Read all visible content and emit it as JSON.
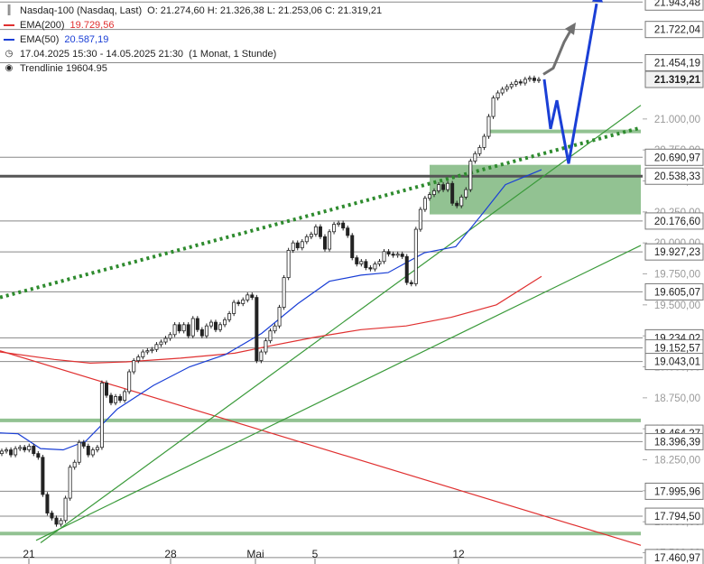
{
  "legend": {
    "instrument": "Nasdaq-100 (Nasdaq, Last)",
    "ohlc": "O: 21.274,60  H: 21.326,38  L: 21.253,06  C: 21.319,21",
    "ema200_label": "EMA(200)",
    "ema200_value": "19.729,56",
    "ema50_label": "EMA(50)",
    "ema50_value": "20.587,19",
    "period": "17.04.2025 15:30 - 14.05.2025 21:30",
    "timeframe": "(1 Monat, 1 Stunde)",
    "trendline": "Trendlinie  19604.95"
  },
  "colors": {
    "ema200": "#e03030",
    "ema50": "#1a3fd6",
    "trendline": "#3a9a3a",
    "dotted_trend": "#2e8b2e",
    "zone": "#7fb77f",
    "projection_blue": "#1a3fd6",
    "projection_grey": "#707070",
    "axis_label_bg": "#ffffff",
    "current_label_bg": "#ffffff"
  },
  "chart_data": {
    "type": "candlestick",
    "y_axis_ticks": [
      "21.000,00",
      "20.750,00",
      "20.500,00",
      "20.250,00",
      "20.000,00",
      "19.750,00",
      "19.500,00",
      "19.250,00",
      "19.000,00",
      "18.750,00",
      "18.500,00",
      "18.250,00",
      "18.000,00",
      "17.750,00",
      "17.500,00"
    ],
    "x_axis_ticks": [
      "21",
      "28",
      "Mai",
      "5",
      "12"
    ],
    "ylim": [
      17460,
      21960
    ],
    "grid": false,
    "price_levels": [
      {
        "label": "21.943,48",
        "value": 21943.48
      },
      {
        "label": "21.722,04",
        "value": 21722.04
      },
      {
        "label": "21.454,19",
        "value": 21454.19
      },
      {
        "label": "21.319,21",
        "value": 21319.21,
        "current": true
      },
      {
        "label": "20.690,97",
        "value": 20690.97
      },
      {
        "label": "20.538,33",
        "value": 20538.33,
        "bold": true
      },
      {
        "label": "20.176,60",
        "value": 20176.6
      },
      {
        "label": "19.927,23",
        "value": 19927.23
      },
      {
        "label": "19.605,07",
        "value": 19605.07
      },
      {
        "label": "19.234,02",
        "value": 19234.02
      },
      {
        "label": "19.152,57",
        "value": 19152.57
      },
      {
        "label": "19.043,01",
        "value": 19043.01
      },
      {
        "label": "18.464,27",
        "value": 18464.27
      },
      {
        "label": "18.396,39",
        "value": 18396.39
      },
      {
        "label": "17.995,96",
        "value": 17995.96
      },
      {
        "label": "17.794,50",
        "value": 17794.5
      },
      {
        "label": "17.460,97",
        "value": 17460.97
      }
    ],
    "candles_close": [
      18320,
      18330,
      18290,
      18340,
      18350,
      18330,
      18360,
      18300,
      18270,
      17970,
      17820,
      17780,
      17730,
      17760,
      17940,
      18190,
      18230,
      18390,
      18360,
      18290,
      18330,
      18350,
      18870,
      18770,
      18710,
      18760,
      18730,
      18800,
      18960,
      19050,
      19080,
      19120,
      19130,
      19140,
      19180,
      19200,
      19230,
      19260,
      19340,
      19290,
      19340,
      19250,
      19390,
      19300,
      19250,
      19330,
      19360,
      19300,
      19340,
      19380,
      19430,
      19520,
      19510,
      19540,
      19580,
      19560,
      19050,
      19120,
      19210,
      19290,
      19330,
      19480,
      19720,
      19940,
      20000,
      19960,
      20010,
      20050,
      20070,
      20130,
      20050,
      19950,
      20090,
      20150,
      20160,
      20120,
      20060,
      19880,
      19830,
      19850,
      19800,
      19790,
      19830,
      19850,
      19930,
      19910,
      19900,
      19910,
      19890,
      19680,
      19670,
      20110,
      20270,
      20360,
      20390,
      20420,
      20470,
      20430,
      20480,
      20320,
      20300,
      20370,
      20430,
      20660,
      20720,
      20770,
      20860,
      21020,
      21170,
      21210,
      21240,
      21260,
      21280,
      21300,
      21290,
      21320,
      21330,
      21310,
      21319
    ],
    "ema50_points": [
      [
        -10,
        18470
      ],
      [
        20,
        18460
      ],
      [
        45,
        18340
      ],
      [
        70,
        18330
      ],
      [
        95,
        18400
      ],
      [
        130,
        18660
      ],
      [
        170,
        18850
      ],
      [
        210,
        19000
      ],
      [
        250,
        19100
      ],
      [
        290,
        19270
      ],
      [
        330,
        19510
      ],
      [
        365,
        19690
      ],
      [
        400,
        19740
      ],
      [
        430,
        19760
      ],
      [
        470,
        19920
      ],
      [
        505,
        19970
      ],
      [
        535,
        20240
      ],
      [
        560,
        20470
      ],
      [
        600,
        20590
      ]
    ],
    "ema200_points": [
      [
        0,
        19120
      ],
      [
        60,
        19060
      ],
      [
        100,
        19030
      ],
      [
        140,
        19040
      ],
      [
        200,
        19070
      ],
      [
        260,
        19110
      ],
      [
        300,
        19170
      ],
      [
        350,
        19240
      ],
      [
        400,
        19300
      ],
      [
        450,
        19330
      ],
      [
        500,
        19400
      ],
      [
        550,
        19500
      ],
      [
        600,
        19730
      ]
    ],
    "trend_red": [
      [
        0,
        19130
      ],
      [
        710,
        17560
      ]
    ],
    "trend_green_1": [
      [
        45,
        17580
      ],
      [
        710,
        21110
      ]
    ],
    "trend_green_2": [
      [
        40,
        17600
      ],
      [
        710,
        19980
      ]
    ],
    "trend_dotted": [
      [
        0,
        19560
      ],
      [
        710,
        20930
      ]
    ],
    "zone": {
      "x_start": 476,
      "x_end": 710,
      "top": 20630,
      "bottom": 20230
    },
    "band_lines": [
      {
        "value": 20900,
        "x_start": 540,
        "x_end": 710
      },
      {
        "value": 18568,
        "x_start": 0,
        "x_end": 710
      },
      {
        "value": 17655,
        "x_start": 0,
        "x_end": 710
      }
    ],
    "projection_blue": [
      [
        603,
        21320
      ],
      [
        610,
        20920
      ],
      [
        617,
        21150
      ],
      [
        630,
        20640
      ],
      [
        663,
        22050
      ]
    ],
    "projection_grey": [
      [
        602,
        21360
      ],
      [
        613,
        21410
      ],
      [
        625,
        21620
      ],
      [
        635,
        21750
      ]
    ]
  }
}
